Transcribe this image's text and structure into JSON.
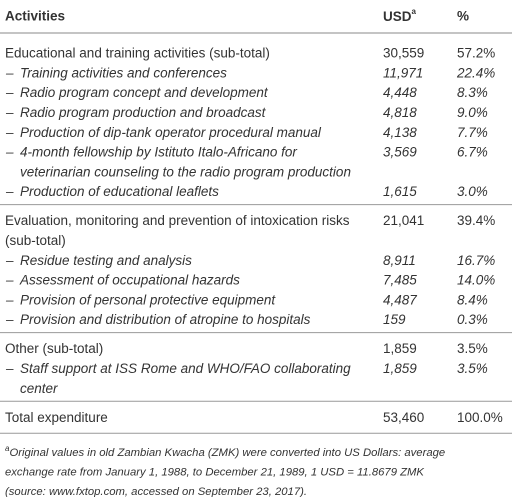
{
  "table": {
    "header": {
      "activities": "Activities",
      "usd": "USD",
      "usd_note": "a",
      "percent": "%"
    },
    "sections": [
      {
        "rows": [
          {
            "label": [
              "Educational and training activities (sub-total)"
            ],
            "usd": "30,559",
            "percent": "57.2%"
          },
          {
            "dash": "–",
            "label": [
              "Training activities and conferences"
            ],
            "usd": "11,971",
            "percent": "22.4%"
          },
          {
            "dash": "–",
            "label": [
              "Radio program concept and development"
            ],
            "usd": "4,448",
            "percent": "8.3%"
          },
          {
            "dash": "–",
            "label": [
              "Radio program production and broadcast"
            ],
            "usd": "4,818",
            "percent": "9.0%"
          },
          {
            "dash": "–",
            "label": [
              "Production of dip-tank operator procedural manual"
            ],
            "usd": "4,138",
            "percent": "7.7%"
          },
          {
            "dash": "–",
            "label": [
              "4-month fellowship by Istituto Italo-Africano for",
              "veterinarian counseling to the radio program production"
            ],
            "usd": "3,569",
            "percent": "6.7%"
          },
          {
            "dash": "–",
            "label": [
              "Production of educational leaflets"
            ],
            "usd": "1,615",
            "percent": "3.0%"
          }
        ]
      },
      {
        "rows": [
          {
            "label": [
              "Evaluation, monitoring and prevention of intoxication risks",
              "(sub-total)"
            ],
            "usd": "21,041",
            "percent": "39.4%"
          },
          {
            "dash": "–",
            "label": [
              "Residue testing and analysis"
            ],
            "usd": "8,911",
            "percent": "16.7%"
          },
          {
            "dash": "–",
            "label": [
              "Assessment of occupational hazards"
            ],
            "usd": "7,485",
            "percent": "14.0%"
          },
          {
            "dash": "–",
            "label": [
              "Provision of personal protective equipment"
            ],
            "usd": "4,487",
            "percent": "8.4%"
          },
          {
            "dash": "–",
            "label": [
              "Provision and distribution of atropine to hospitals"
            ],
            "usd": "159",
            "percent": "0.3%"
          }
        ]
      },
      {
        "rows": [
          {
            "label": [
              "Other (sub-total)"
            ],
            "usd": "1,859",
            "percent": "3.5%"
          },
          {
            "dash": "–",
            "label": [
              "Staff support at ISS Rome and WHO/FAO collaborating",
              "center"
            ],
            "usd": "1,859",
            "percent": "3.5%"
          }
        ]
      },
      {
        "rows": [
          {
            "label": [
              "Total expenditure"
            ],
            "usd": "53,460",
            "percent": "100.0%"
          }
        ]
      }
    ],
    "footnote": {
      "marker": "a",
      "lines": [
        "Original values in old Zambian Kwacha (ZMK) were converted into US Dollars: average",
        "exchange rate from January 1, 1988, to December 21, 1989, 1 USD = 11.8679 ZMK",
        "(source: www.fxtop.com, accessed on September 23, 2017)."
      ]
    }
  }
}
